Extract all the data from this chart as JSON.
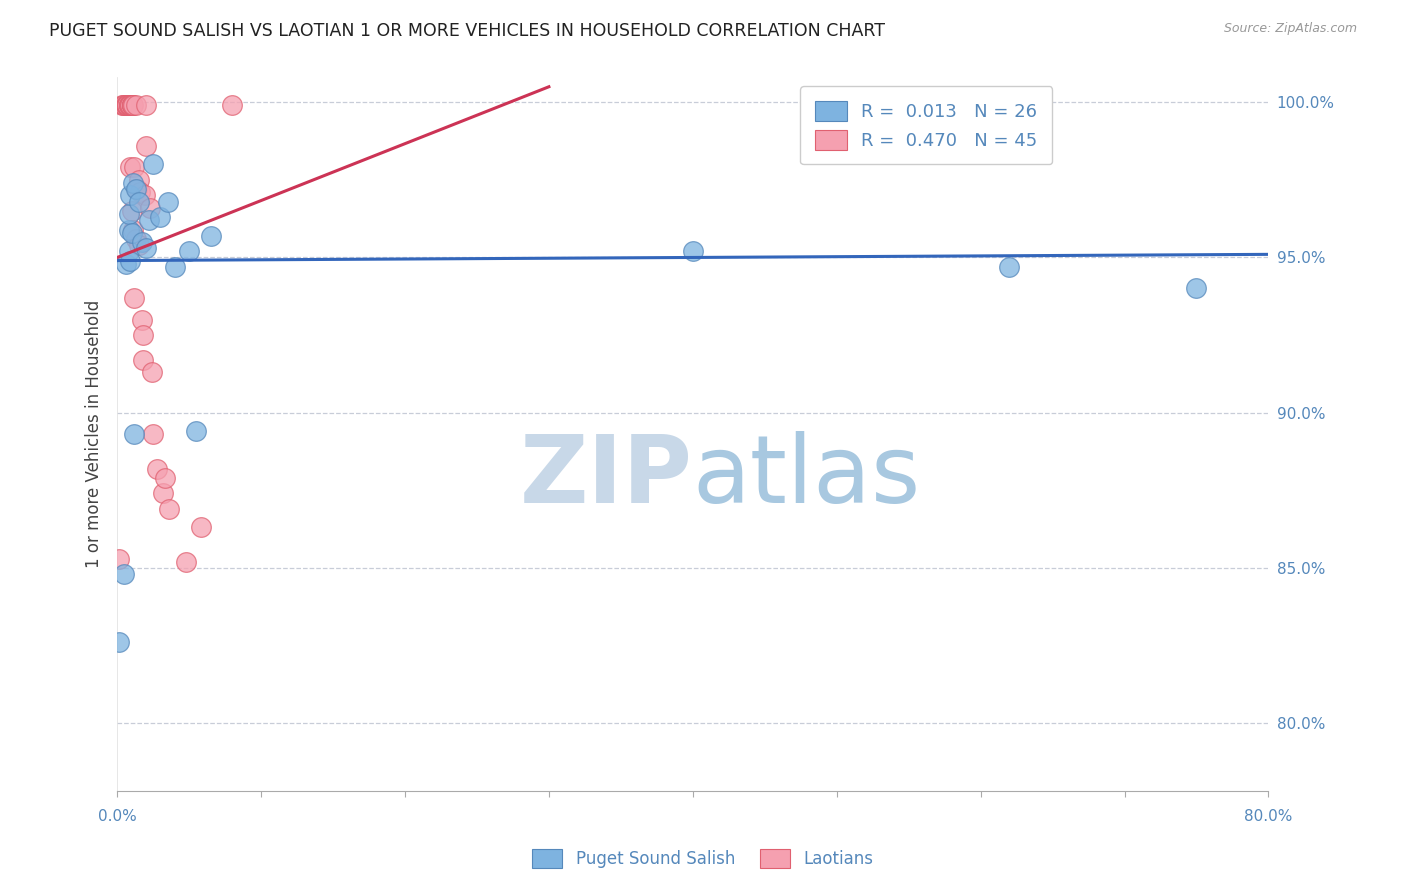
{
  "title": "PUGET SOUND SALISH VS LAOTIAN 1 OR MORE VEHICLES IN HOUSEHOLD CORRELATION CHART",
  "source": "Source: ZipAtlas.com",
  "ylabel": "1 or more Vehicles in Household",
  "ytick_labels": [
    "80.0%",
    "85.0%",
    "90.0%",
    "95.0%",
    "100.0%"
  ],
  "ytick_values": [
    0.8,
    0.85,
    0.9,
    0.95,
    1.0
  ],
  "xlim": [
    0.0,
    0.8
  ],
  "ylim": [
    0.778,
    1.008
  ],
  "legend_blue_r": "R =  0.013",
  "legend_blue_n": "N = 26",
  "legend_pink_r": "R =  0.470",
  "legend_pink_n": "N = 45",
  "blue_color": "#7EB3E0",
  "pink_color": "#F5A0B0",
  "blue_edge_color": "#5588BB",
  "pink_edge_color": "#E06070",
  "blue_line_color": "#3366BB",
  "pink_line_color": "#CC3355",
  "axis_label_color": "#5588BB",
  "grid_color": "#C8CDD8",
  "watermark_color": "#D5E5F0",
  "blue_line_x0": 0.0,
  "blue_line_x1": 0.8,
  "blue_line_y0": 0.949,
  "blue_line_y1": 0.951,
  "pink_line_x0": 0.0,
  "pink_line_x1": 0.3,
  "pink_line_y0": 0.95,
  "pink_line_y1": 1.005,
  "blue_points": [
    [
      0.001,
      0.826
    ],
    [
      0.005,
      0.848
    ],
    [
      0.006,
      0.948
    ],
    [
      0.008,
      0.952
    ],
    [
      0.008,
      0.959
    ],
    [
      0.008,
      0.964
    ],
    [
      0.009,
      0.949
    ],
    [
      0.009,
      0.97
    ],
    [
      0.01,
      0.958
    ],
    [
      0.011,
      0.974
    ],
    [
      0.012,
      0.893
    ],
    [
      0.013,
      0.972
    ],
    [
      0.015,
      0.968
    ],
    [
      0.017,
      0.955
    ],
    [
      0.02,
      0.953
    ],
    [
      0.022,
      0.962
    ],
    [
      0.025,
      0.98
    ],
    [
      0.03,
      0.963
    ],
    [
      0.035,
      0.968
    ],
    [
      0.04,
      0.947
    ],
    [
      0.05,
      0.952
    ],
    [
      0.055,
      0.894
    ],
    [
      0.065,
      0.957
    ],
    [
      0.4,
      0.952
    ],
    [
      0.62,
      0.947
    ],
    [
      0.75,
      0.94
    ]
  ],
  "pink_points": [
    [
      0.001,
      0.853
    ],
    [
      0.003,
      0.999
    ],
    [
      0.004,
      0.999
    ],
    [
      0.005,
      0.999
    ],
    [
      0.006,
      0.999
    ],
    [
      0.006,
      0.999
    ],
    [
      0.007,
      0.999
    ],
    [
      0.007,
      0.999
    ],
    [
      0.008,
      0.999
    ],
    [
      0.008,
      0.999
    ],
    [
      0.008,
      0.999
    ],
    [
      0.009,
      0.999
    ],
    [
      0.009,
      0.999
    ],
    [
      0.009,
      0.979
    ],
    [
      0.01,
      0.999
    ],
    [
      0.01,
      0.999
    ],
    [
      0.01,
      0.999
    ],
    [
      0.01,
      0.999
    ],
    [
      0.01,
      0.965
    ],
    [
      0.011,
      0.999
    ],
    [
      0.011,
      0.959
    ],
    [
      0.012,
      0.979
    ],
    [
      0.012,
      0.937
    ],
    [
      0.013,
      0.956
    ],
    [
      0.013,
      0.999
    ],
    [
      0.014,
      0.972
    ],
    [
      0.015,
      0.975
    ],
    [
      0.015,
      0.954
    ],
    [
      0.016,
      0.971
    ],
    [
      0.017,
      0.93
    ],
    [
      0.018,
      0.925
    ],
    [
      0.018,
      0.917
    ],
    [
      0.019,
      0.97
    ],
    [
      0.02,
      0.986
    ],
    [
      0.02,
      0.999
    ],
    [
      0.023,
      0.966
    ],
    [
      0.024,
      0.913
    ],
    [
      0.025,
      0.893
    ],
    [
      0.028,
      0.882
    ],
    [
      0.032,
      0.874
    ],
    [
      0.033,
      0.879
    ],
    [
      0.036,
      0.869
    ],
    [
      0.048,
      0.852
    ],
    [
      0.058,
      0.863
    ],
    [
      0.08,
      0.999
    ]
  ]
}
